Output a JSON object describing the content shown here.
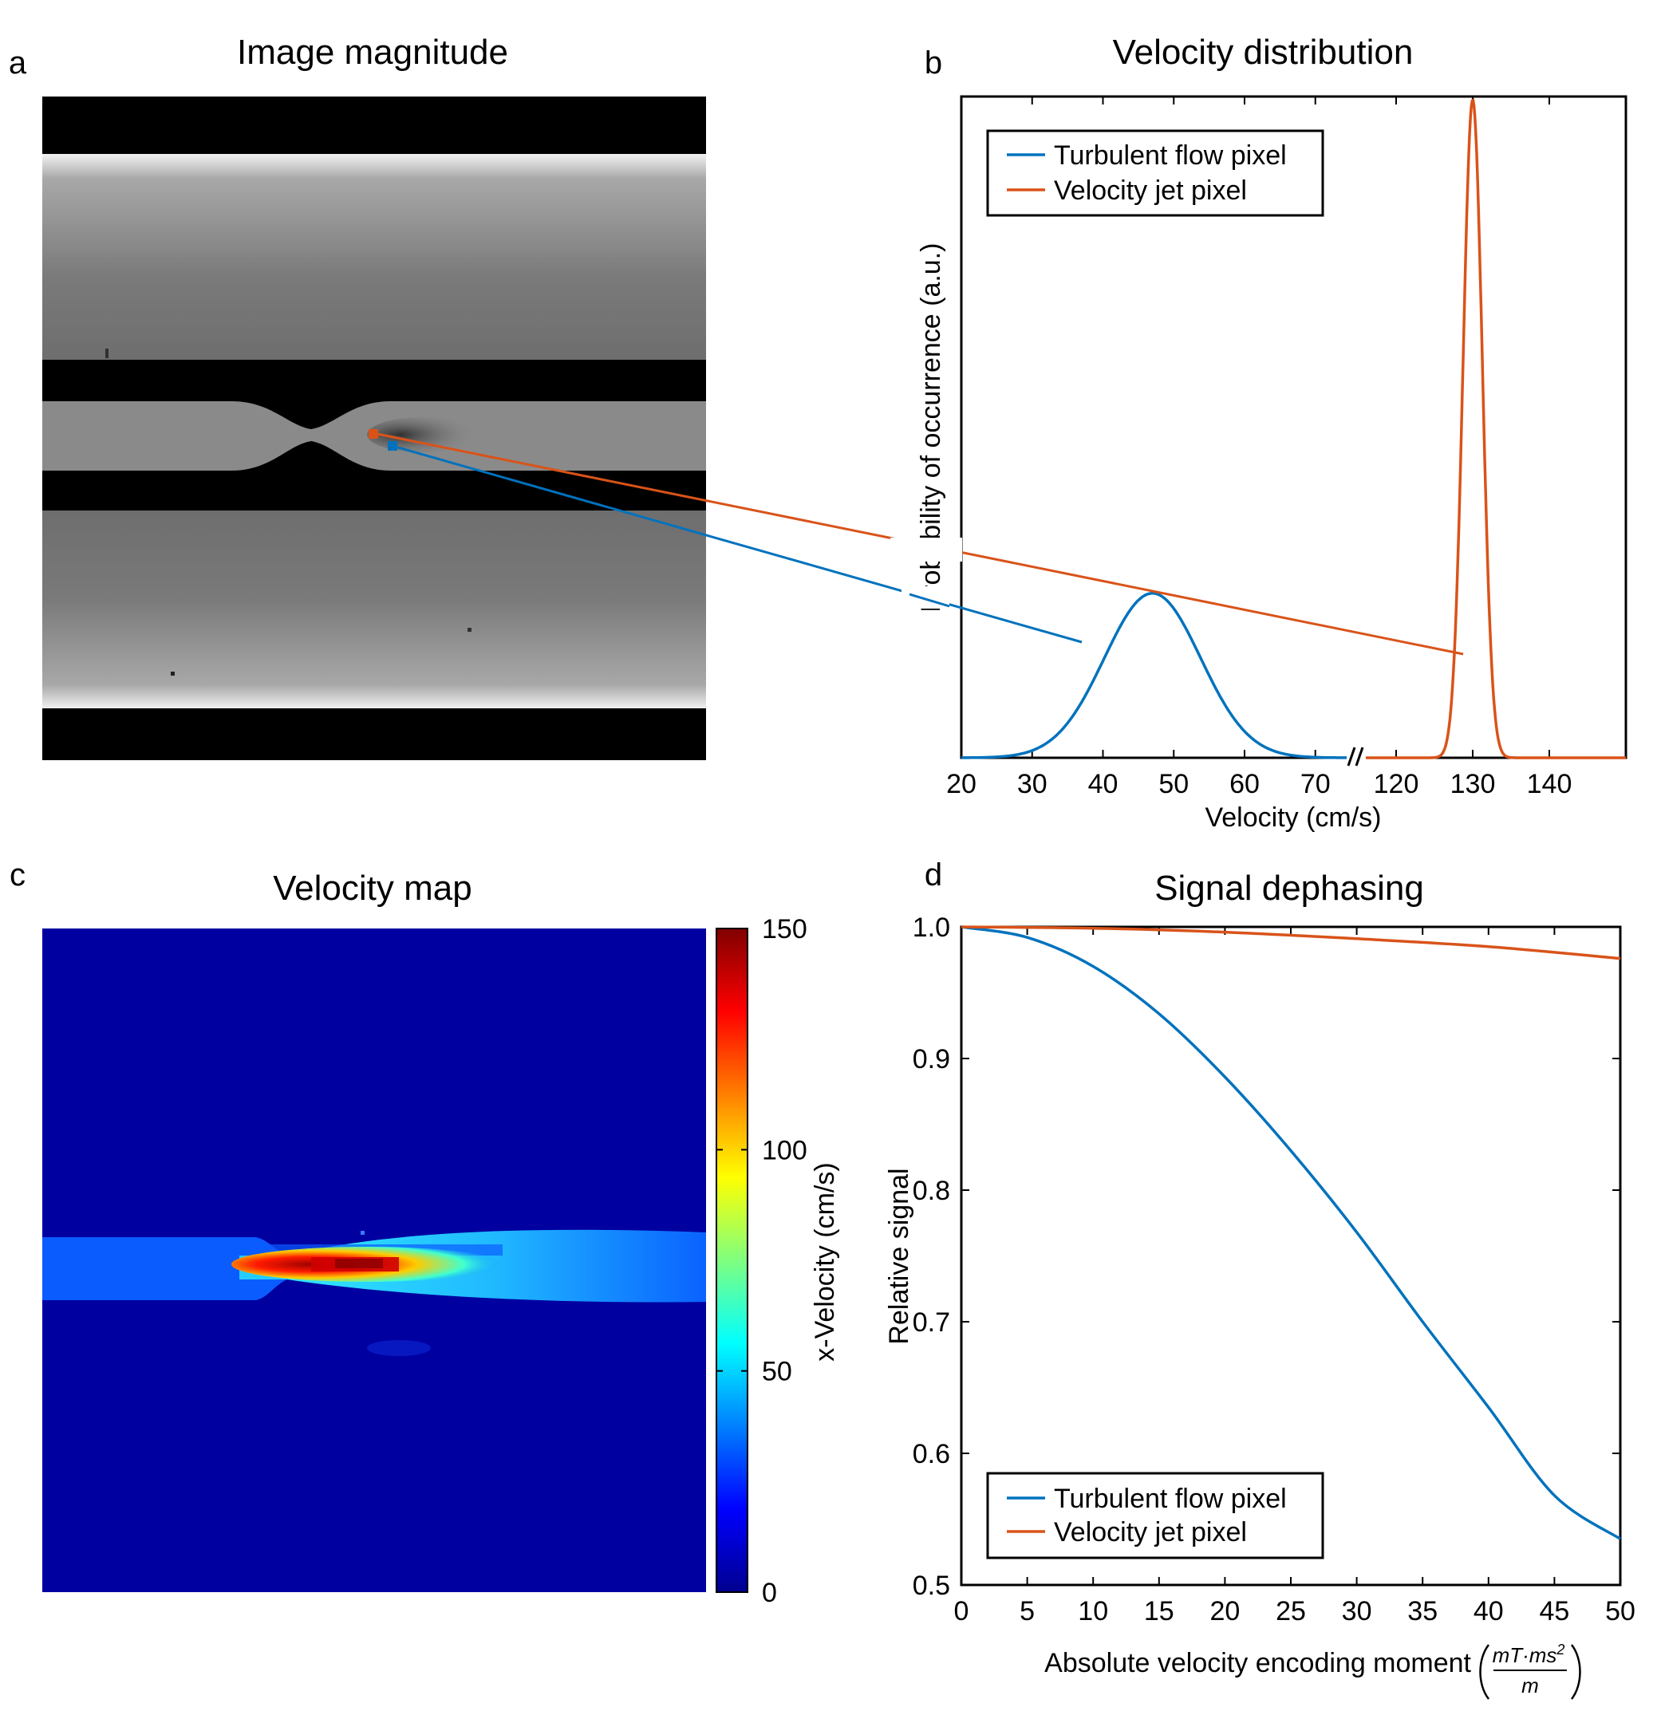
{
  "panels": {
    "a": {
      "letter": "a",
      "title": "Image magnitude"
    },
    "b": {
      "letter": "b",
      "title": "Velocity distribution"
    },
    "c": {
      "letter": "c",
      "title": "Velocity map"
    },
    "d": {
      "letter": "d",
      "title": "Signal dephasing"
    }
  },
  "colors": {
    "turbulent": "#0072BD",
    "jet": "#D95319",
    "axis": "#000000"
  },
  "chart_data": [
    {
      "panel": "a",
      "type": "heatmap",
      "title": "Image magnitude",
      "description_markers": [
        "Turbulent flow pixel",
        "Velocity jet pixel"
      ]
    },
    {
      "panel": "b",
      "type": "line",
      "title": "Velocity distribution",
      "xlabel": "Velocity (cm/s)",
      "ylabel": "Probability of occurrence (a.u.)",
      "axis_break": "//",
      "segments": [
        {
          "xlim": [
            20,
            76
          ],
          "ticks": [
            20,
            30,
            40,
            50,
            60,
            70
          ]
        },
        {
          "xlim": [
            115,
            150
          ],
          "ticks": [
            120,
            130,
            140
          ]
        }
      ],
      "ylim": [
        0,
        1
      ],
      "legend": {
        "location": "top-left",
        "entries": [
          "Turbulent flow pixel",
          "Velocity jet pixel"
        ]
      },
      "series": [
        {
          "name": "Turbulent flow pixel",
          "kind": "gaussian",
          "mean": 47,
          "sigma": 6.8,
          "peak": 0.25
        },
        {
          "name": "Velocity jet pixel",
          "kind": "gaussian",
          "mean": 130,
          "sigma": 1.25,
          "peak": 1.0
        }
      ]
    },
    {
      "panel": "c",
      "type": "heatmap",
      "title": "Velocity map",
      "colorbar": {
        "label": "x-Velocity (cm/s)",
        "range": [
          0,
          150
        ],
        "ticks": [
          0,
          50,
          100,
          150
        ],
        "colormap": "jet"
      }
    },
    {
      "panel": "d",
      "type": "line",
      "title": "Signal dephasing",
      "xlabel_text": "Absolute velocity encoding moment",
      "xlabel_unit": {
        "num_main": "mT·ms",
        "num_exp": "2",
        "den": "m"
      },
      "ylabel": "Relative signal",
      "xlim": [
        0,
        50
      ],
      "ylim": [
        0.5,
        1.0
      ],
      "xticks": [
        0,
        5,
        10,
        15,
        20,
        25,
        30,
        35,
        40,
        45,
        50
      ],
      "yticks": [
        0.5,
        0.6,
        0.7,
        0.8,
        0.9,
        1.0
      ],
      "legend": {
        "location": "bottom-left",
        "entries": [
          "Turbulent flow pixel",
          "Velocity jet pixel"
        ]
      },
      "series": [
        {
          "name": "Turbulent flow pixel",
          "x": [
            0,
            5,
            10,
            15,
            20,
            25,
            30,
            35,
            40,
            45,
            50
          ],
          "y": [
            1.0,
            0.992,
            0.97,
            0.934,
            0.886,
            0.83,
            0.768,
            0.7,
            0.635,
            0.568,
            0.535
          ]
        },
        {
          "name": "Velocity jet pixel",
          "x": [
            0,
            10,
            20,
            30,
            40,
            50
          ],
          "y": [
            1.0,
            0.999,
            0.996,
            0.991,
            0.985,
            0.976
          ]
        }
      ]
    }
  ]
}
